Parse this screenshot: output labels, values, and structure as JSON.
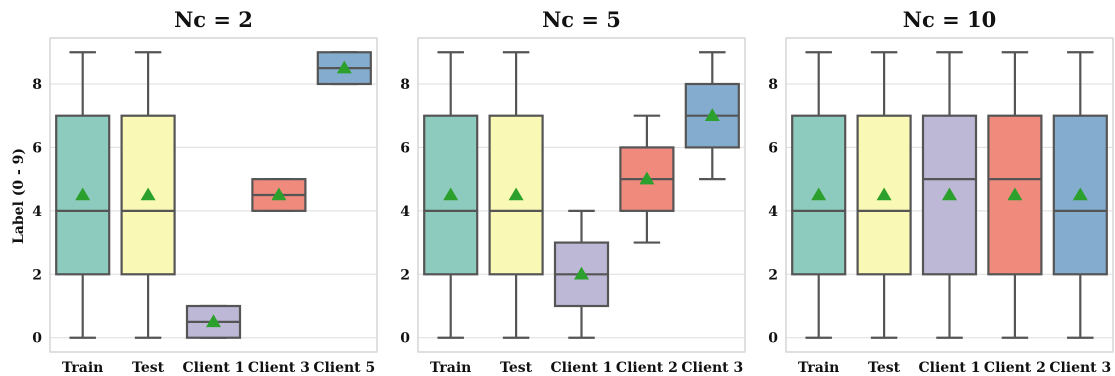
{
  "figure": {
    "ylabel": "Label (0 - 9)",
    "ylim": [
      -0.45,
      9.45
    ],
    "yticks": [
      0,
      2,
      4,
      6,
      8
    ],
    "grid": true
  },
  "chart_data": [
    {
      "type": "box",
      "title": "Nc = 2",
      "categories": [
        "Train",
        "Test",
        "Client 1",
        "Client 3",
        "Client 5"
      ],
      "colors": [
        "#8ecbbf",
        "#f9f8b4",
        "#bcb8d6",
        "#ef8a7c",
        "#84acce"
      ],
      "boxes": [
        {
          "min": 0,
          "q1": 2,
          "median": 4,
          "q3": 7,
          "max": 9,
          "mean": 4.5
        },
        {
          "min": 0,
          "q1": 2,
          "median": 4,
          "q3": 7,
          "max": 9,
          "mean": 4.5
        },
        {
          "min": 0,
          "q1": 0,
          "median": 0.5,
          "q3": 1,
          "max": 1,
          "mean": 0.5
        },
        {
          "min": 4,
          "q1": 4,
          "median": 4.5,
          "q3": 5,
          "max": 5,
          "mean": 4.5
        },
        {
          "min": 8,
          "q1": 8,
          "median": 8.5,
          "q3": 9,
          "max": 9,
          "mean": 8.5
        }
      ]
    },
    {
      "type": "box",
      "title": "Nc = 5",
      "categories": [
        "Train",
        "Test",
        "Client 1",
        "Client 2",
        "Client 3"
      ],
      "colors": [
        "#8ecbbf",
        "#f9f8b4",
        "#bcb8d6",
        "#ef8a7c",
        "#84acce"
      ],
      "boxes": [
        {
          "min": 0,
          "q1": 2,
          "median": 4,
          "q3": 7,
          "max": 9,
          "mean": 4.5
        },
        {
          "min": 0,
          "q1": 2,
          "median": 4,
          "q3": 7,
          "max": 9,
          "mean": 4.5
        },
        {
          "min": 0,
          "q1": 1,
          "median": 2,
          "q3": 3,
          "max": 4,
          "mean": 2
        },
        {
          "min": 3,
          "q1": 4,
          "median": 5,
          "q3": 6,
          "max": 7,
          "mean": 5
        },
        {
          "min": 5,
          "q1": 6,
          "median": 7,
          "q3": 8,
          "max": 9,
          "mean": 7
        }
      ]
    },
    {
      "type": "box",
      "title": "Nc = 10",
      "categories": [
        "Train",
        "Test",
        "Client 1",
        "Client 2",
        "Client 3"
      ],
      "colors": [
        "#8ecbbf",
        "#f9f8b4",
        "#bcb8d6",
        "#ef8a7c",
        "#84acce"
      ],
      "boxes": [
        {
          "min": 0,
          "q1": 2,
          "median": 4,
          "q3": 7,
          "max": 9,
          "mean": 4.5
        },
        {
          "min": 0,
          "q1": 2,
          "median": 4,
          "q3": 7,
          "max": 9,
          "mean": 4.5
        },
        {
          "min": 0,
          "q1": 2,
          "median": 5,
          "q3": 7,
          "max": 9,
          "mean": 4.5
        },
        {
          "min": 0,
          "q1": 2,
          "median": 5,
          "q3": 7,
          "max": 9,
          "mean": 4.5
        },
        {
          "min": 0,
          "q1": 2,
          "median": 4,
          "q3": 7,
          "max": 9,
          "mean": 4.5
        }
      ]
    }
  ]
}
